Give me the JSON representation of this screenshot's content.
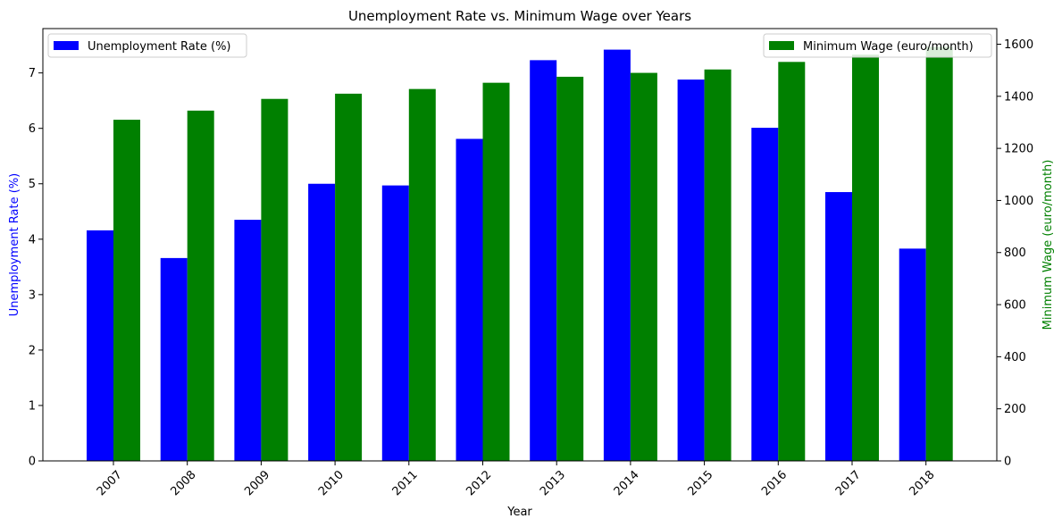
{
  "chart_data": {
    "type": "bar",
    "title": "Unemployment Rate vs. Minimum Wage over Years",
    "xlabel": "Year",
    "categories": [
      "2007",
      "2008",
      "2009",
      "2010",
      "2011",
      "2012",
      "2013",
      "2014",
      "2015",
      "2016",
      "2017",
      "2018"
    ],
    "grid": false,
    "series": [
      {
        "name": "Unemployment Rate (%)",
        "axis": "left",
        "color": "#0000ff",
        "values": [
          4.16,
          3.66,
          4.35,
          5.0,
          4.97,
          5.81,
          7.23,
          7.42,
          6.88,
          6.01,
          4.85,
          3.83
        ],
        "legend_position": "upper-left"
      },
      {
        "name": "Minimum Wage (euro/month)",
        "axis": "right",
        "color": "#008000",
        "values": [
          1310,
          1345,
          1390,
          1410,
          1428,
          1452,
          1475,
          1490,
          1503,
          1532,
          1560,
          1590
        ],
        "legend_position": "upper-right"
      }
    ],
    "y_left": {
      "label": "Unemployment Rate (%)",
      "color": "#0000ff",
      "ylim": [
        0,
        7.8
      ],
      "ticks": [
        0,
        1,
        2,
        3,
        4,
        5,
        6,
        7
      ]
    },
    "y_right": {
      "label": "Minimum Wage (euro/month)",
      "color": "#008000",
      "ylim": [
        0,
        1660
      ],
      "ticks": [
        0,
        200,
        400,
        600,
        800,
        1000,
        1200,
        1400,
        1600
      ]
    },
    "x_tick_rotation": 45
  }
}
